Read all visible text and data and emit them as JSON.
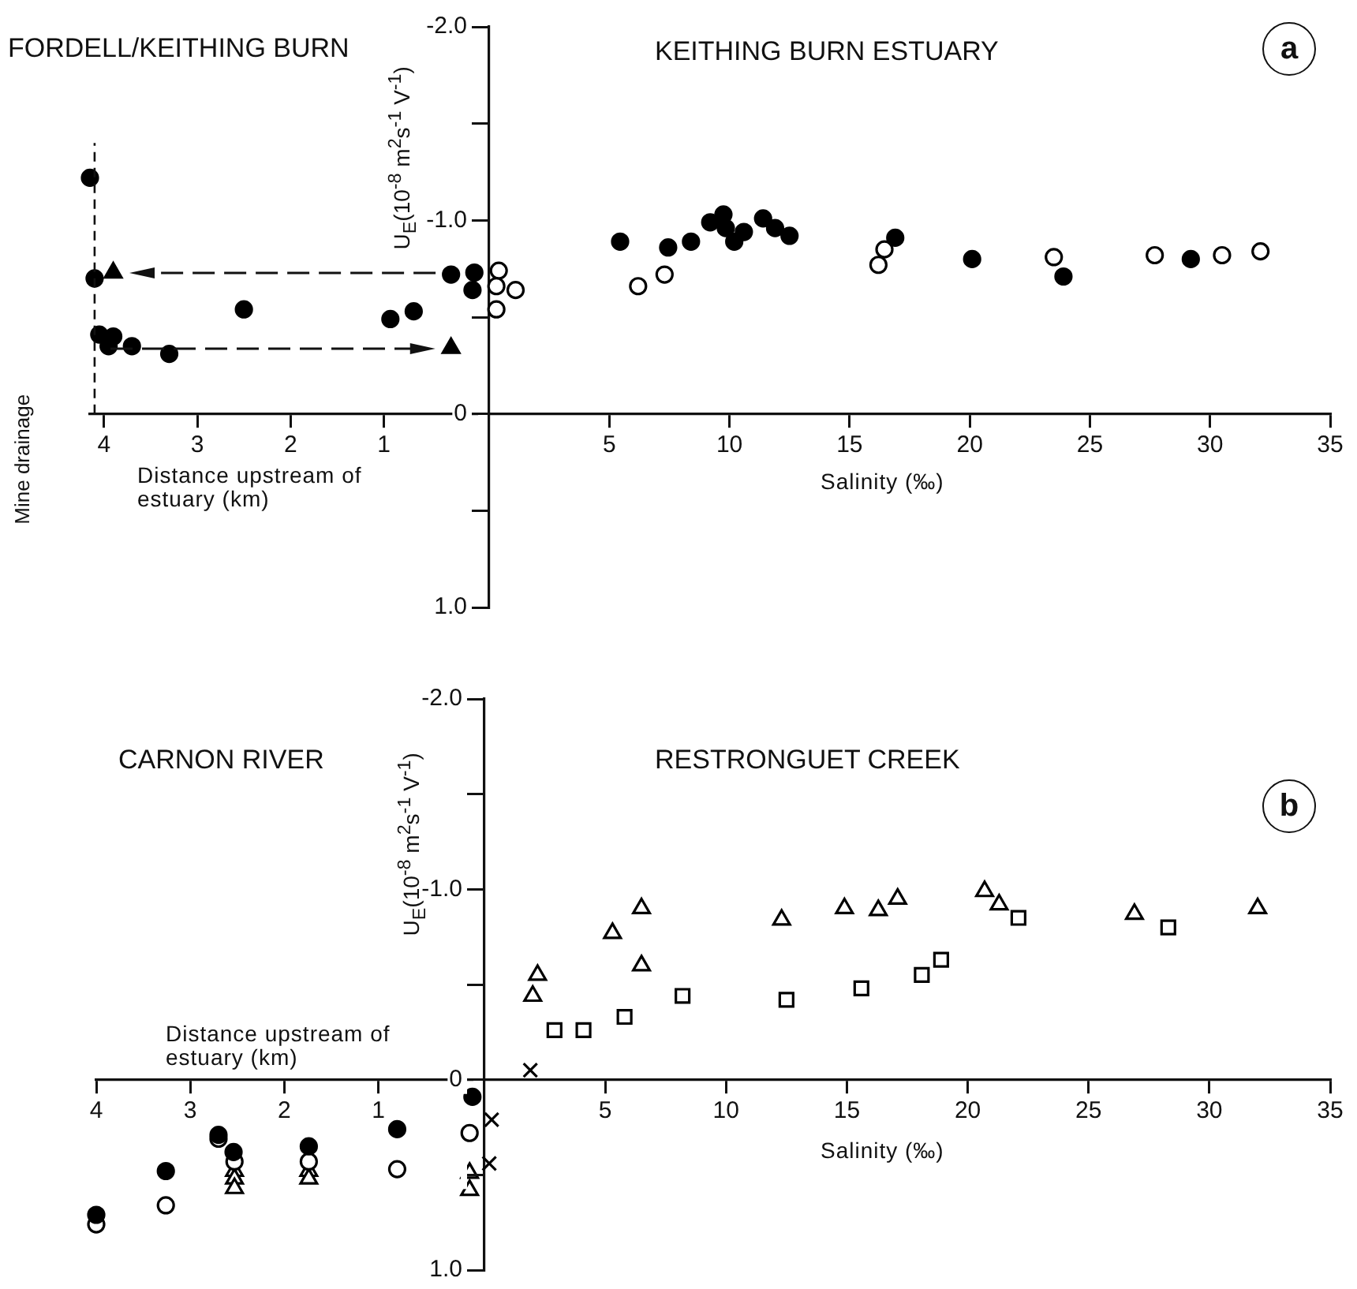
{
  "chart_data": [
    {
      "type": "scatter",
      "title": "FORDELL/KEITHING BURN",
      "xlabel": "Distance upstream of estuary (km)",
      "xlim": [
        4.15,
        0
      ],
      "xticks": [
        4,
        3,
        2,
        1
      ],
      "ylim": [
        1.0,
        -2.0
      ],
      "tick_labels": "x",
      "grid": false,
      "legend": false,
      "ref_lines": [
        {
          "axis": "x",
          "value": 4.1,
          "label": "Mine drainage",
          "line_style": "dashed"
        }
      ],
      "series": [
        {
          "color": "#000000",
          "marker": "circle",
          "x": [
            4.15,
            4.1,
            0.28,
            0.03,
            0.05,
            0.93,
            0.68,
            2.5,
            4.05,
            3.9,
            3.95,
            3.7,
            3.3
          ],
          "values": [
            -1.22,
            -0.7,
            -0.72,
            -0.73,
            -0.64,
            -0.49,
            -0.53,
            -0.54,
            -0.41,
            -0.4,
            -0.35,
            -0.35,
            -0.31
          ]
        },
        {
          "color": "#000000",
          "marker": "triangle",
          "x": [
            3.9,
            0.28
          ],
          "values": [
            -0.73,
            -0.34
          ]
        }
      ]
    },
    {
      "type": "scatter",
      "title": "KEITHING BURN ESTUARY",
      "xlabel": "Salinity (‰)",
      "ylabel": "U$_{E}$(10$^{-8}$ m$^{2}$s$^{-1}$ V$^{-1}$)",
      "xlim": [
        0,
        35
      ],
      "xticks": [
        5,
        10,
        15,
        20,
        25,
        30,
        35
      ],
      "ylim": [
        1.0,
        -2.0
      ],
      "yticks": [
        {
          "value": -2,
          "label": "-2.0"
        },
        {
          "value": -1.5,
          "label": null
        },
        {
          "value": -1,
          "label": "-1.0"
        },
        {
          "value": -0.5,
          "label": null
        },
        0,
        {
          "value": 0.5,
          "label": null
        },
        {
          "value": 1,
          "label": "1.0"
        }
      ],
      "grid": false,
      "legend": false,
      "annotations": [
        "a"
      ],
      "series": [
        {
          "color": "#000000",
          "marker": "circle",
          "x": [
            5.45,
            7.45,
            8.4,
            9.2,
            9.75,
            9.85,
            10.2,
            10.6,
            11.4,
            11.9,
            12.5,
            16.9,
            20.1,
            23.9,
            29.2
          ],
          "values": [
            -0.89,
            -0.86,
            -0.89,
            -0.99,
            -1.03,
            -0.96,
            -0.89,
            -0.94,
            -1.01,
            -0.96,
            -0.92,
            -0.91,
            -0.8,
            -0.71,
            -0.8
          ]
        },
        {
          "color": "#ffffff",
          "marker": "circle",
          "x": [
            0.4,
            0.3,
            1.1,
            0.3,
            6.2,
            7.3,
            16.2,
            16.45,
            23.5,
            27.7,
            30.5,
            32.1
          ],
          "values": [
            -0.74,
            -0.66,
            -0.64,
            -0.54,
            -0.66,
            -0.72,
            -0.77,
            -0.85,
            -0.81,
            -0.82,
            -0.82,
            -0.84
          ]
        }
      ]
    },
    {
      "type": "scatter",
      "title": "CARNON RIVER",
      "xlabel": "Distance upstream of estuary (km)",
      "xlim": [
        4,
        0
      ],
      "xticks": [
        4,
        3,
        2,
        1
      ],
      "ylim": [
        1.0,
        -2.0
      ],
      "tick_labels": "x",
      "grid": false,
      "legend": false,
      "series": [
        {
          "color": "#000000",
          "marker": "circle",
          "x": [
            4,
            3.26,
            2.7,
            2.54,
            1.74,
            0.8,
            0.0
          ],
          "values": [
            0.71,
            0.48,
            0.29,
            0.38,
            0.35,
            0.26,
            0.09
          ]
        },
        {
          "color": "#ffffff",
          "marker": "circle",
          "x": [
            4,
            3.26,
            2.7,
            2.53,
            1.74,
            0.8,
            0.03
          ],
          "values": [
            0.76,
            0.66,
            0.31,
            0.43,
            0.43,
            0.47,
            0.28
          ]
        },
        {
          "color": "#ffffff",
          "marker": "triangle",
          "x": [
            2.53,
            2.53,
            2.53,
            1.74,
            1.74,
            0.03,
            0.03
          ],
          "values": [
            0.48,
            0.52,
            0.57,
            0.48,
            0.52,
            0.49,
            0.58
          ]
        }
      ]
    },
    {
      "type": "scatter",
      "title": "RESTRONGUET CREEK",
      "xlabel": "Salinity (‰)",
      "ylabel": "U$_{E}$(10$^{-8}$ m$^{2}$s$^{-1}$ V$^{-1}$)",
      "xlim": [
        0,
        35
      ],
      "xticks": [
        5,
        10,
        15,
        20,
        25,
        30,
        35
      ],
      "ylim": [
        1.0,
        -2.0
      ],
      "yticks": [
        {
          "value": -2,
          "label": "-2.0"
        },
        {
          "value": -1.5,
          "label": null
        },
        {
          "value": -1,
          "label": "-1.0"
        },
        {
          "value": -0.5,
          "label": null
        },
        0,
        {
          "value": 0.5,
          "label": null
        },
        {
          "value": 1,
          "label": "1.0"
        }
      ],
      "grid": false,
      "legend": false,
      "annotations": [
        "b"
      ],
      "series": [
        {
          "color": "#ffffff",
          "marker": "triangle",
          "x": [
            2.2,
            2.0,
            5.3,
            6.5,
            6.5,
            12.3,
            14.9,
            16.3,
            17.1,
            20.7,
            21.3,
            26.9,
            32.0
          ],
          "values": [
            -0.55,
            -0.44,
            -0.77,
            -0.9,
            -0.6,
            -0.84,
            -0.9,
            -0.89,
            -0.95,
            -0.99,
            -0.92,
            -0.87,
            -0.9
          ]
        },
        {
          "color": "#ffffff",
          "marker": "square",
          "x": [
            2.9,
            4.1,
            5.8,
            8.2,
            12.5,
            15.6,
            18.1,
            18.9,
            22.1,
            28.3
          ],
          "values": [
            -0.26,
            -0.26,
            -0.33,
            -0.44,
            -0.42,
            -0.48,
            -0.55,
            -0.63,
            -0.85,
            -0.8
          ]
        },
        {
          "color": "#000000",
          "marker": "cross",
          "x": [
            1.9,
            0.3,
            0.2
          ],
          "values": [
            -0.05,
            0.21,
            0.44
          ]
        }
      ]
    }
  ]
}
